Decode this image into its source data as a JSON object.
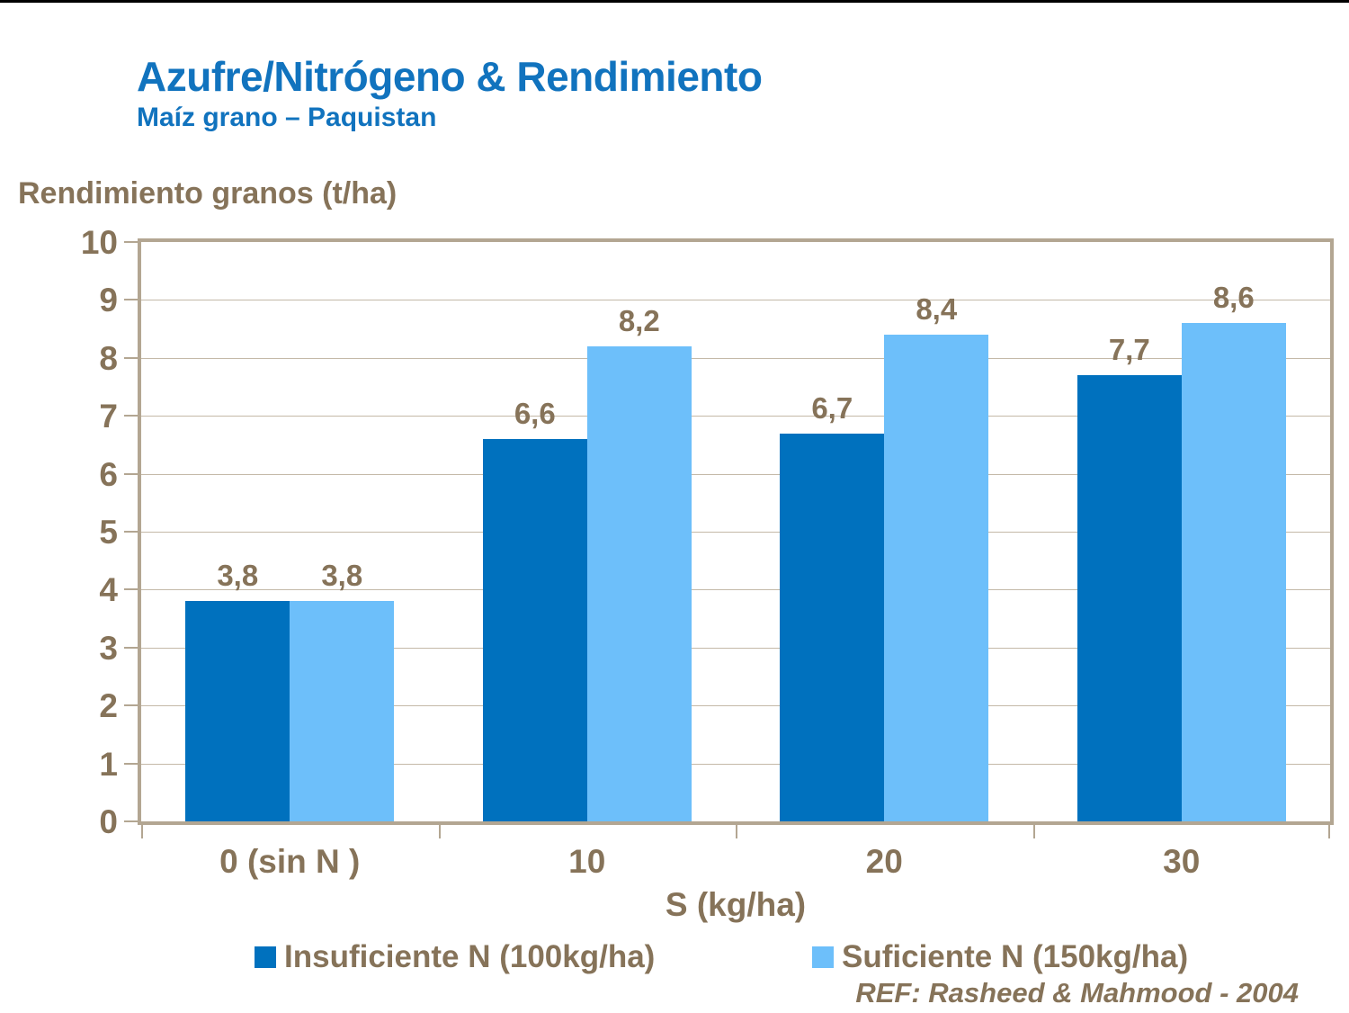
{
  "page": {
    "title": "Azufre/Nitrógeno & Rendimiento",
    "subtitle": "Maíz grano – Paquistan",
    "reference": "REF: Rasheed & Mahmood - 2004"
  },
  "chart_data": {
    "type": "bar",
    "title": "Azufre/Nitrógeno & Rendimiento",
    "subtitle": "Maíz grano – Paquistan",
    "xlabel": "S (kg/ha)",
    "ylabel": "Rendimiento granos (t/ha)",
    "categories": [
      "0 (sin N )",
      "10",
      "20",
      "30"
    ],
    "series": [
      {
        "name": "Insuficiente N (100kg/ha)",
        "color": "#0071BE",
        "values": [
          3.8,
          6.6,
          6.7,
          7.7
        ],
        "labels": [
          "3,8",
          "6,6",
          "6,7",
          "7,7"
        ]
      },
      {
        "name": "Suficiente N (150kg/ha)",
        "color": "#6DBFFA",
        "values": [
          3.8,
          8.2,
          8.4,
          8.6
        ],
        "labels": [
          "3,8",
          "8,2",
          "8,4",
          "8,6"
        ]
      }
    ],
    "ylim": [
      0,
      10
    ],
    "yticks": [
      0,
      1,
      2,
      3,
      4,
      5,
      6,
      7,
      8,
      9,
      10
    ],
    "grid": true,
    "legend_position": "bottom"
  },
  "colors": {
    "title_blue": "#1173BE",
    "text_brown": "#867359",
    "axis_border": "#B3A692",
    "gridline": "#C4B9A8",
    "series_dark_blue": "#0071BE",
    "series_light_blue": "#6DBFFA"
  }
}
